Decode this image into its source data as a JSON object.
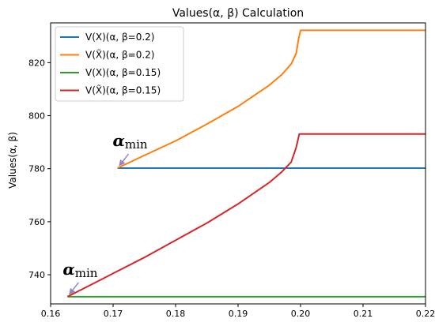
{
  "chart_data": {
    "type": "line",
    "title": "Values(α, β) Calculation",
    "xlabel": "",
    "ylabel": "Values(α, β)",
    "xlim": [
      0.16,
      0.22
    ],
    "ylim": [
      729,
      835
    ],
    "xticks": [
      0.16,
      0.17,
      0.18,
      0.19,
      0.2,
      0.21,
      0.22
    ],
    "xtick_labels": [
      "0.16",
      "0.17",
      "0.18",
      "0.19",
      "0.20",
      "0.21",
      "0.22"
    ],
    "yticks": [
      740,
      760,
      780,
      800,
      820
    ],
    "ytick_labels": [
      "740",
      "760",
      "780",
      "800",
      "820"
    ],
    "grid": false,
    "legend_position": "top-left",
    "series": [
      {
        "name": "V(X)(α, β=0.2)",
        "color": "#1f77b4",
        "points": [
          [
            0.1707,
            780.2
          ],
          [
            0.22,
            780.2
          ]
        ]
      },
      {
        "name": "V(X̃)(α, β=0.2)",
        "color": "#ff7f0e",
        "points": [
          [
            0.1707,
            780.2
          ],
          [
            0.175,
            785.0
          ],
          [
            0.18,
            790.5
          ],
          [
            0.185,
            796.8
          ],
          [
            0.19,
            803.5
          ],
          [
            0.195,
            811.5
          ],
          [
            0.197,
            815.5
          ],
          [
            0.1985,
            819.5
          ],
          [
            0.1993,
            823.5
          ],
          [
            0.1997,
            829.0
          ],
          [
            0.2,
            832.2
          ],
          [
            0.22,
            832.2
          ]
        ]
      },
      {
        "name": "V(X)(α, β=0.15)",
        "color": "#2ca02c",
        "points": [
          [
            0.1627,
            731.7
          ],
          [
            0.22,
            731.7
          ]
        ]
      },
      {
        "name": "V(X̃)(α, β=0.15)",
        "color": "#d62728",
        "points": [
          [
            0.1627,
            731.7
          ],
          [
            0.17,
            740.5
          ],
          [
            0.175,
            746.5
          ],
          [
            0.18,
            753.0
          ],
          [
            0.185,
            759.5
          ],
          [
            0.19,
            766.7
          ],
          [
            0.195,
            774.8
          ],
          [
            0.197,
            778.8
          ],
          [
            0.1985,
            782.5
          ],
          [
            0.1993,
            788.0
          ],
          [
            0.1998,
            793.1
          ],
          [
            0.22,
            793.1
          ]
        ]
      }
    ],
    "annotations": [
      {
        "label": "α",
        "subscript": "min",
        "arrow_to": [
          0.1707,
          780.2
        ]
      },
      {
        "label": "α",
        "subscript": "min",
        "arrow_to": [
          0.1627,
          731.7
        ]
      }
    ]
  }
}
